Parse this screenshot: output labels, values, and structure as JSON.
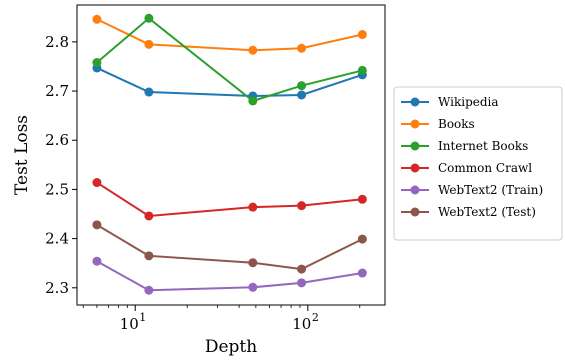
{
  "chart_data": {
    "type": "line",
    "xlabel": "Depth",
    "ylabel": "Test Loss",
    "xscale": "log",
    "xlim": [
      4.6,
      280
    ],
    "ylim": [
      2.265,
      2.875
    ],
    "x": [
      6,
      12,
      48,
      92,
      207
    ],
    "yticks": [
      "2.3",
      "2.4",
      "2.5",
      "2.6",
      "2.7",
      "2.8"
    ],
    "xticks": [
      {
        "base": "10",
        "exp": "1",
        "value": 10
      },
      {
        "base": "10",
        "exp": "2",
        "value": 100
      }
    ],
    "legend_position": "right",
    "series": [
      {
        "name": "Wikipedia",
        "color": "#1f77b4",
        "values": [
          2.747,
          2.698,
          2.69,
          2.692,
          2.733
        ]
      },
      {
        "name": "Books",
        "color": "#ff7f0e",
        "values": [
          2.846,
          2.795,
          2.783,
          2.787,
          2.815
        ]
      },
      {
        "name": "Internet Books",
        "color": "#2ca02c",
        "values": [
          2.758,
          2.848,
          2.68,
          2.711,
          2.742
        ]
      },
      {
        "name": "Common Crawl",
        "color": "#d62728",
        "values": [
          2.514,
          2.446,
          2.464,
          2.467,
          2.48
        ]
      },
      {
        "name": "WebText2 (Train)",
        "color": "#9467bd",
        "values": [
          2.354,
          2.295,
          2.301,
          2.31,
          2.33
        ]
      },
      {
        "name": "WebText2 (Test)",
        "color": "#8c564b",
        "values": [
          2.428,
          2.365,
          2.351,
          2.338,
          2.399
        ]
      }
    ]
  }
}
